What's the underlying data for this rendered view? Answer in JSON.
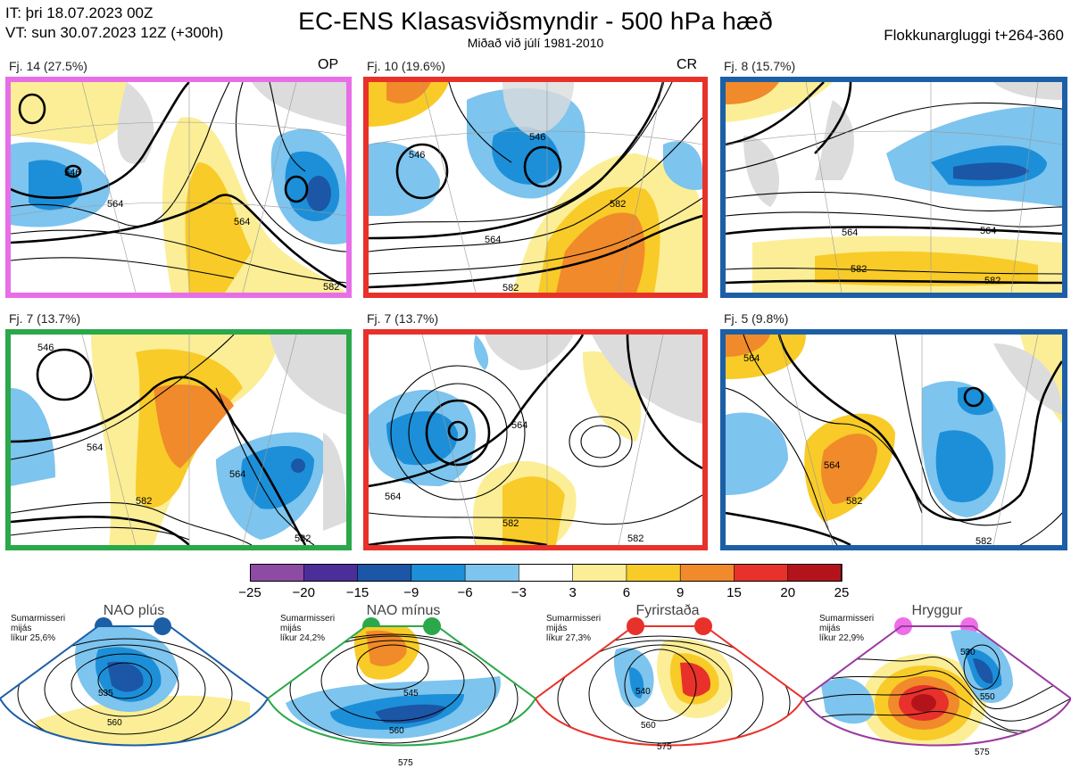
{
  "header": {
    "it_line": "IT: þri 18.07.2023 00Z",
    "vt_line": "VT: sun 30.07.2023 12Z  (+300h)",
    "title": "EC-ENS Klasasviðsmyndir - 500 hPa hæð",
    "subtitle": "Miðað við júlí 1981-2010",
    "window": "Flokkunargluggi t+264-360"
  },
  "panels": [
    {
      "label": "Fj. 14 (27.5%)",
      "tag": "OP",
      "border": "#e86ee8",
      "contours": [
        "546",
        "564",
        "564",
        "582"
      ]
    },
    {
      "label": "Fj. 10 (19.6%)",
      "tag": "CR",
      "border": "#e8312a",
      "contours": [
        "546",
        "546",
        "564",
        "582",
        "582"
      ]
    },
    {
      "label": "Fj. 8 (15.7%)",
      "tag": "",
      "border": "#1c5fa6",
      "contours": [
        "564",
        "564",
        "582",
        "582"
      ]
    },
    {
      "label": "Fj. 7 (13.7%)",
      "tag": "",
      "border": "#2aa84a",
      "contours": [
        "546",
        "564",
        "564",
        "582",
        "582"
      ]
    },
    {
      "label": "Fj. 7 (13.7%)",
      "tag": "",
      "border": "#e8312a",
      "contours": [
        "564",
        "564",
        "582",
        "582"
      ]
    },
    {
      "label": "Fj. 5 (9.8%)",
      "tag": "",
      "border": "#1c5fa6",
      "contours": [
        "564",
        "564",
        "582",
        "582"
      ]
    }
  ],
  "colorbar": {
    "colors": [
      "#8e4ba3",
      "#4b2e99",
      "#1c56a6",
      "#1c8fd8",
      "#7dc4ee",
      "#ffffff",
      "#fbee96",
      "#f8cb28",
      "#f18a2a",
      "#e8312a",
      "#b3141c"
    ],
    "labels": [
      "−25",
      "−20",
      "−15",
      "−9",
      "−6",
      "−3",
      "3",
      "6",
      "9",
      "15",
      "20",
      "25"
    ]
  },
  "regimes": [
    {
      "title": "NAO plús",
      "note": [
        "Sumarmisseri",
        "mijás",
        "líkur 25,6%"
      ],
      "color": "#1c5fa6",
      "contours": [
        "535",
        "560"
      ]
    },
    {
      "title": "NAO mínus",
      "note": [
        "Sumarmisseri",
        "mijás",
        "líkur 24,2%"
      ],
      "color": "#2aa84a",
      "contours": [
        "545",
        "560",
        "575"
      ]
    },
    {
      "title": "Fyrirstaða",
      "note": [
        "Sumarmisseri",
        "mijás",
        "líkur 27,3%"
      ],
      "color": "#e8312a",
      "contours": [
        "540",
        "560",
        "575"
      ]
    },
    {
      "title": "Hryggur",
      "note": [
        "Sumarmisseri",
        "mijás",
        "líkur 22,9%"
      ],
      "color": "#9a3aa0",
      "dotcolor": "#ee6ee8",
      "contours": [
        "530",
        "550",
        "575"
      ]
    }
  ]
}
